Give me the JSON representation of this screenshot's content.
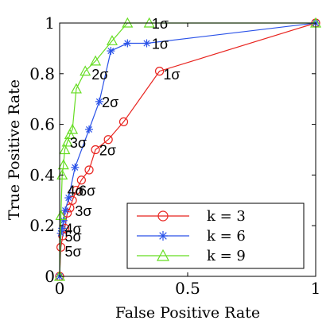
{
  "chart_data": {
    "type": "line",
    "xlabel": "False Positive Rate",
    "ylabel": "True Positive Rate",
    "xlim": [
      0,
      1
    ],
    "ylim": [
      0,
      1
    ],
    "xticks": [
      0,
      0.5,
      1
    ],
    "yticks": [
      0,
      0.2,
      0.4,
      0.6,
      0.8,
      1
    ],
    "xtick_labels": [
      "0",
      "0.5",
      "1"
    ],
    "ytick_labels": [
      "0",
      "0.2",
      "0.4",
      "0.6",
      "0.8",
      "1"
    ],
    "grid": false,
    "legend_position": "bottom-right",
    "series": [
      {
        "name": "k = 3",
        "color": "#e8231e",
        "marker": "circle",
        "x": [
          0,
          0.005,
          0.012,
          0.02,
          0.03,
          0.04,
          0.05,
          0.065,
          0.085,
          0.115,
          0.14,
          0.19,
          0.25,
          0.39,
          1
        ],
        "y": [
          0,
          0.115,
          0.16,
          0.19,
          0.25,
          0.27,
          0.3,
          0.34,
          0.38,
          0.42,
          0.5,
          0.54,
          0.61,
          0.81,
          1
        ]
      },
      {
        "name": "k = 6",
        "color": "#2a52e8",
        "marker": "star",
        "x": [
          0,
          0.005,
          0.01,
          0.015,
          0.022,
          0.035,
          0.06,
          0.115,
          0.155,
          0.2,
          0.265,
          0.34,
          1
        ],
        "y": [
          0,
          0.17,
          0.19,
          0.22,
          0.26,
          0.31,
          0.43,
          0.58,
          0.69,
          0.89,
          0.92,
          0.92,
          1
        ]
      },
      {
        "name": "k = 9",
        "color": "#66dd22",
        "marker": "triangle",
        "x": [
          0,
          0.005,
          0.01,
          0.015,
          0.02,
          0.03,
          0.04,
          0.05,
          0.065,
          0.1,
          0.14,
          0.205,
          0.265,
          0.35,
          1
        ],
        "y": [
          0,
          0.24,
          0.4,
          0.44,
          0.5,
          0.53,
          0.56,
          0.58,
          0.74,
          0.81,
          0.85,
          0.93,
          1.0,
          1.0,
          1
        ]
      }
    ],
    "annotations": [
      {
        "text": "1σ",
        "x": 0.36,
        "y": 1.0
      },
      {
        "text": "1σ",
        "x": 0.36,
        "y": 0.92
      },
      {
        "text": "1σ",
        "x": 0.405,
        "y": 0.8
      },
      {
        "text": "2σ",
        "x": 0.125,
        "y": 0.8
      },
      {
        "text": "2σ",
        "x": 0.165,
        "y": 0.69
      },
      {
        "text": "2σ",
        "x": 0.155,
        "y": 0.5
      },
      {
        "text": "3σ",
        "x": 0.04,
        "y": 0.53
      },
      {
        "text": "4σ",
        "x": 0.03,
        "y": 0.34
      },
      {
        "text": "6σ",
        "x": 0.075,
        "y": 0.34
      },
      {
        "text": "3σ",
        "x": 0.06,
        "y": 0.26
      },
      {
        "text": "4σ",
        "x": 0.02,
        "y": 0.19
      },
      {
        "text": "5σ",
        "x": 0.02,
        "y": 0.16
      },
      {
        "text": "5σ",
        "x": 0.02,
        "y": 0.1
      }
    ]
  }
}
